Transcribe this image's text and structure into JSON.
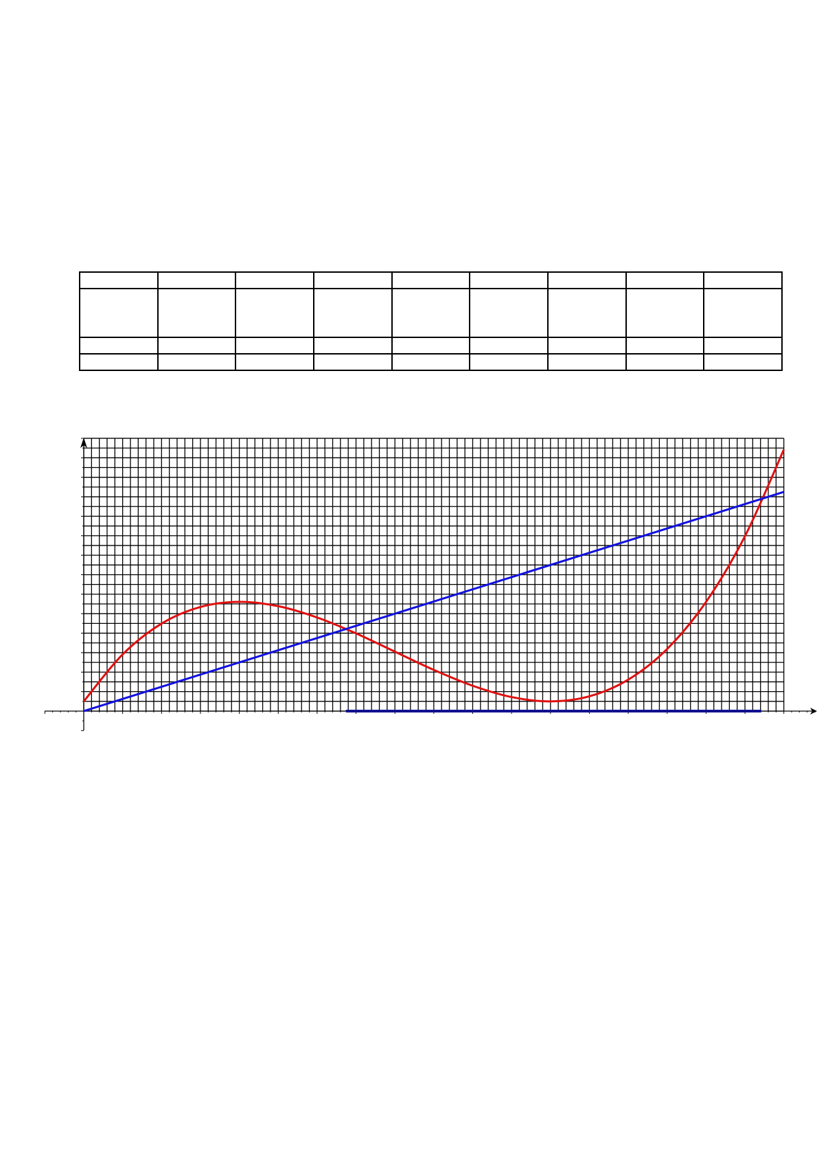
{
  "table": {
    "rows": [
      [
        "",
        "",
        "",
        "",
        "",
        "",
        "",
        "",
        ""
      ],
      [
        "",
        "",
        "",
        "",
        "",
        "",
        "",
        "",
        ""
      ],
      [
        "",
        "",
        "",
        "",
        "",
        "",
        "",
        "",
        ""
      ],
      [
        "",
        "",
        "",
        "",
        "",
        "",
        "",
        "",
        ""
      ]
    ]
  },
  "chart_data": {
    "type": "line",
    "title": "",
    "xlabel": "",
    "ylabel": "",
    "xlim": [
      0,
      90
    ],
    "ylim": [
      0,
      28
    ],
    "grid": true,
    "series": [
      {
        "color": "#e01010",
        "x": [
          0,
          5,
          10,
          15,
          20,
          25,
          30,
          35,
          40,
          45,
          50,
          55,
          60,
          65,
          70,
          75,
          80,
          85,
          90
        ],
        "y": [
          1,
          5.82,
          8.98,
          10.69,
          11.21,
          10.77,
          9.61,
          7.98,
          6.1,
          4.23,
          2.6,
          1.44,
          1,
          1.52,
          3.23,
          6.38,
          11.21,
          17.95,
          26.84
        ]
      },
      {
        "color": "#1010e0",
        "x": [
          0,
          90
        ],
        "y": [
          0,
          22.5
        ]
      }
    ],
    "x_axis_segment": {
      "color": "#101090",
      "from": 33.7,
      "to": 87.1
    }
  }
}
